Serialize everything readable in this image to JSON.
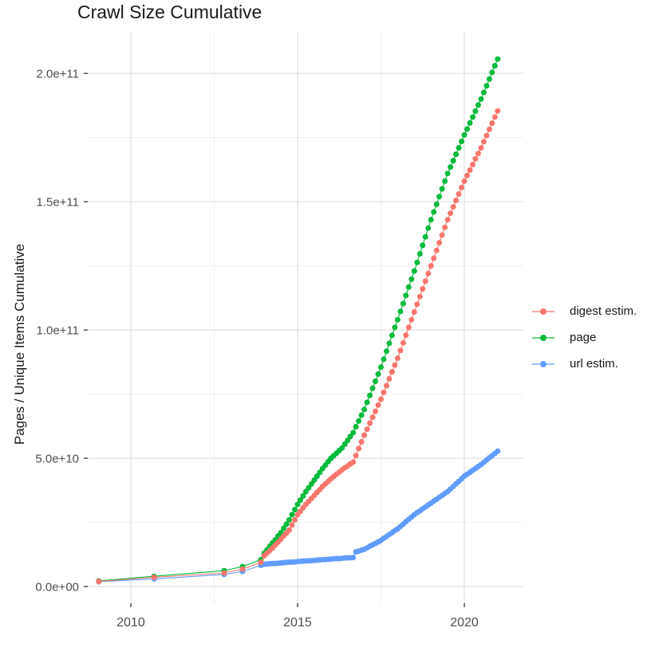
{
  "chart_data": {
    "type": "line",
    "title": "Crawl Size Cumulative",
    "xlabel": "",
    "ylabel": "Pages / Unique Items Cumulative",
    "value_unit": "billions (1e9)",
    "xlim": [
      2008.71,
      2021.77
    ],
    "ylim_billions": [
      -6.5,
      216.2
    ],
    "grid": "on",
    "legend_position": "right",
    "x_major_ticks": [
      {
        "value": 2010,
        "label": "2010"
      },
      {
        "value": 2015,
        "label": "2015"
      },
      {
        "value": 2020,
        "label": "2020"
      }
    ],
    "x_minor_ticks": [
      2012.5,
      2017.5
    ],
    "y_major_ticks": [
      {
        "value": 0,
        "label": "0.0e+00"
      },
      {
        "value": 50,
        "label": "5.0e+10"
      },
      {
        "value": 100,
        "label": "1.0e+11"
      },
      {
        "value": 150,
        "label": "1.5e+11"
      },
      {
        "value": 200,
        "label": "2.0e+11"
      }
    ],
    "y_minor_ticks": [
      25,
      75,
      125,
      175
    ],
    "x": [
      2009.04,
      2010.7,
      2012.8,
      2013.35,
      2013.9,
      2014.0,
      2014.083,
      2014.167,
      2014.25,
      2014.333,
      2014.417,
      2014.5,
      2014.583,
      2014.667,
      2014.75,
      2014.833,
      2014.917,
      2015.0,
      2015.083,
      2015.167,
      2015.25,
      2015.333,
      2015.417,
      2015.5,
      2015.583,
      2015.667,
      2015.75,
      2015.833,
      2015.917,
      2016.0,
      2016.083,
      2016.167,
      2016.25,
      2016.333,
      2016.417,
      2016.5,
      2016.583,
      2016.667,
      2016.75,
      2016.833,
      2016.917,
      2017.0,
      2017.083,
      2017.167,
      2017.25,
      2017.333,
      2017.417,
      2017.5,
      2017.583,
      2017.667,
      2017.75,
      2017.833,
      2017.917,
      2018.0,
      2018.083,
      2018.167,
      2018.25,
      2018.333,
      2018.417,
      2018.5,
      2018.583,
      2018.667,
      2018.75,
      2018.833,
      2018.917,
      2019.0,
      2019.083,
      2019.167,
      2019.25,
      2019.333,
      2019.417,
      2019.5,
      2019.583,
      2019.667,
      2019.75,
      2019.833,
      2019.917,
      2020.0,
      2020.083,
      2020.167,
      2020.25,
      2020.333,
      2020.417,
      2020.5,
      2020.583,
      2020.667,
      2020.75,
      2020.833,
      2020.917,
      2021.0
    ],
    "series": [
      {
        "name": "digest estim.",
        "color": "#F8766D",
        "values_billions": [
          2.0,
          3.6,
          5.3,
          6.8,
          9.5,
          12.0,
          13.0,
          14.0,
          15.0,
          16.2,
          17.3,
          18.5,
          19.7,
          20.8,
          22.0,
          24.0,
          26.0,
          28.0,
          29.3,
          30.7,
          32.0,
          33.2,
          34.3,
          35.5,
          36.7,
          37.8,
          39.0,
          40.0,
          41.0,
          42.0,
          42.9,
          43.8,
          44.6,
          45.5,
          46.3,
          47.0,
          47.8,
          48.5,
          51.1,
          53.8,
          56.4,
          59.0,
          61.3,
          63.7,
          66.0,
          68.3,
          70.7,
          73.0,
          75.7,
          78.3,
          81.0,
          83.7,
          86.3,
          89.0,
          92.0,
          95.0,
          98.0,
          101.0,
          104.0,
          107.0,
          110.0,
          113.0,
          116.0,
          119.0,
          122.0,
          125.0,
          128.0,
          131.0,
          134.0,
          137.0,
          140.0,
          143.0,
          145.5,
          148.0,
          150.5,
          153.0,
          155.5,
          158.0,
          160.2,
          162.3,
          164.5,
          166.7,
          168.8,
          171.0,
          173.4,
          175.8,
          178.2,
          180.6,
          183.0,
          185.4
        ]
      },
      {
        "name": "page",
        "color": "#00BA38",
        "values_billions": [
          2.2,
          4.0,
          6.2,
          7.8,
          10.5,
          13.0,
          14.3,
          15.7,
          17.0,
          18.3,
          19.7,
          21.0,
          22.7,
          24.3,
          26.0,
          28.0,
          30.0,
          32.0,
          33.7,
          35.3,
          37.0,
          38.5,
          40.0,
          41.5,
          43.0,
          44.5,
          46.0,
          47.3,
          48.7,
          50.0,
          51.0,
          52.0,
          53.0,
          54.0,
          55.5,
          57.0,
          58.5,
          60.0,
          62.3,
          64.5,
          66.8,
          69.0,
          71.8,
          74.5,
          77.3,
          80.0,
          82.8,
          85.5,
          88.6,
          91.7,
          94.8,
          97.9,
          101.0,
          104.0,
          107.2,
          110.3,
          113.5,
          116.7,
          119.8,
          123.0,
          126.3,
          129.7,
          133.0,
          136.3,
          139.7,
          143.0,
          146.0,
          149.0,
          152.0,
          155.0,
          158.0,
          161.0,
          163.5,
          166.0,
          168.5,
          171.0,
          173.5,
          176.0,
          178.3,
          180.7,
          183.0,
          185.3,
          187.7,
          190.0,
          192.6,
          195.2,
          197.8,
          200.4,
          203.0,
          205.6
        ]
      },
      {
        "name": "url estim.",
        "color": "#619CFF",
        "values_billions": [
          1.9,
          3.0,
          4.7,
          5.9,
          8.3,
          8.7,
          8.8,
          8.9,
          9.0,
          9.0,
          9.1,
          9.2,
          9.3,
          9.4,
          9.5,
          9.5,
          9.6,
          9.7,
          9.8,
          9.9,
          10.0,
          10.0,
          10.1,
          10.2,
          10.3,
          10.4,
          10.5,
          10.5,
          10.6,
          10.7,
          10.8,
          10.9,
          10.9,
          11.0,
          11.1,
          11.2,
          11.2,
          11.3,
          13.5,
          13.8,
          14.2,
          14.5,
          15.1,
          15.7,
          16.3,
          16.8,
          17.4,
          18.0,
          18.8,
          19.5,
          20.3,
          21.0,
          21.8,
          22.5,
          23.4,
          24.3,
          25.3,
          26.2,
          27.1,
          28.0,
          28.8,
          29.5,
          30.3,
          31.0,
          31.8,
          32.5,
          33.3,
          34.0,
          34.8,
          35.5,
          36.3,
          37.0,
          38.0,
          39.0,
          40.0,
          41.0,
          42.0,
          43.0,
          43.8,
          44.5,
          45.3,
          46.0,
          46.8,
          47.5,
          48.4,
          49.3,
          50.2,
          51.0,
          51.9,
          52.8
        ]
      }
    ],
    "draw_order": [
      "url estim.",
      "page",
      "digest estim."
    ],
    "colors": {
      "grid_major": "#e2e2e2",
      "grid_minor": "#f0f0f0",
      "tick_mark": "#333333",
      "tick_label": "#4d4d4d",
      "text": "#1a1a1a",
      "background": "#ffffff"
    }
  }
}
